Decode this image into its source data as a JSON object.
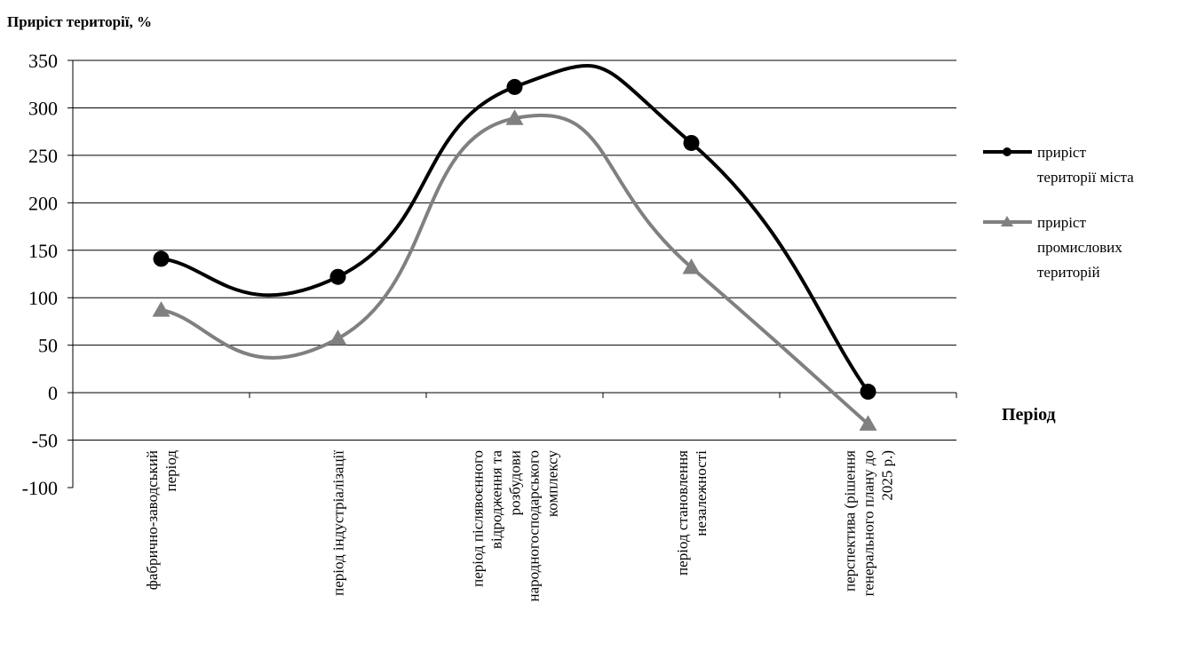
{
  "chart_data": {
    "type": "line",
    "ylabel": "Приріст території, %",
    "xlabel": "Період",
    "ylim": [
      -100,
      350
    ],
    "yticks": [
      -100,
      -50,
      0,
      50,
      100,
      150,
      200,
      250,
      300,
      350
    ],
    "grid": true,
    "legend_position": "right",
    "categories": [
      [
        "фабрично-заводський",
        "період"
      ],
      [
        "період індустріалізації"
      ],
      [
        "період післявоєнного",
        "відродження та",
        "розбудови",
        "народногосподарського",
        "комплексу"
      ],
      [
        "період становлення",
        "незалежності"
      ],
      [
        "перспектива (рішення",
        "генерального плану до",
        "2025 р.)"
      ]
    ],
    "series": [
      {
        "name": [
          "приріст",
          "території міста"
        ],
        "values": [
          141,
          122,
          322,
          263,
          1
        ],
        "color": "#000000",
        "marker": "circle"
      },
      {
        "name": [
          "приріст",
          "промислових",
          "територій"
        ],
        "values": [
          87,
          57,
          289,
          132,
          -33
        ],
        "color": "#808080",
        "marker": "triangle"
      }
    ]
  }
}
